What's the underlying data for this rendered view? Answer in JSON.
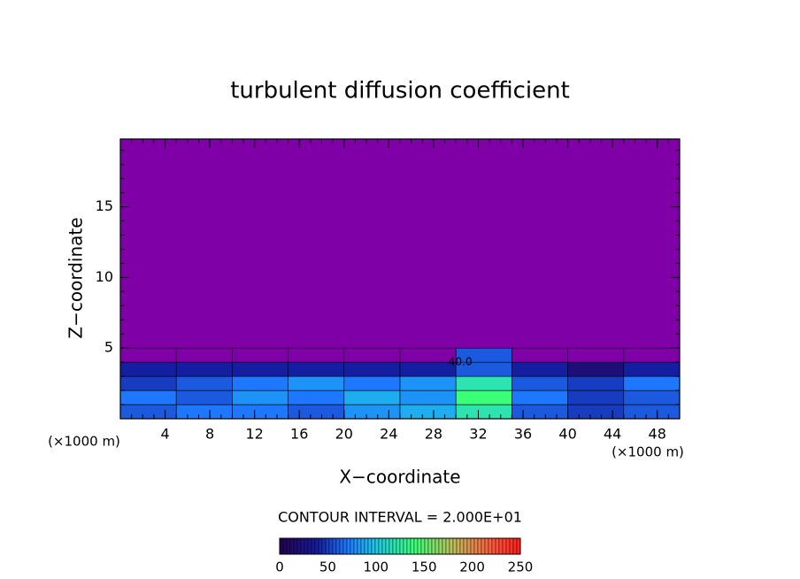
{
  "chart_data": {
    "type": "contour",
    "title": "turbulent diffusion coefficient",
    "x_label": "X−coordinate",
    "y_label": "Z−coordinate",
    "x_unit_label": "(×1000 m)",
    "y_unit_label": "(×1000 m)",
    "xlim": [
      0,
      50
    ],
    "ylim": [
      0,
      19.8
    ],
    "xticks": [
      4,
      8,
      12,
      16,
      20,
      24,
      28,
      32,
      36,
      40,
      44,
      48
    ],
    "yticks": [
      5,
      10,
      15
    ],
    "background_color": "#8000a8",
    "x": [
      2.5,
      7.5,
      12.5,
      17.5,
      22.5,
      27.5,
      32.5,
      37.5,
      42.5,
      47.5
    ],
    "y": [
      0.5,
      1.5,
      2.5,
      3.5,
      4.5
    ],
    "z": [
      [
        60,
        70,
        70,
        60,
        80,
        90,
        120,
        60,
        50,
        60
      ],
      [
        70,
        60,
        80,
        70,
        90,
        80,
        140,
        70,
        50,
        60
      ],
      [
        50,
        60,
        70,
        80,
        70,
        80,
        120,
        60,
        50,
        70
      ],
      [
        40,
        40,
        40,
        40,
        40,
        40,
        60,
        40,
        20,
        40
      ],
      [
        0,
        0,
        0,
        0,
        0,
        0,
        60,
        0,
        0,
        0
      ]
    ],
    "annotations": [
      {
        "text": "40.0",
        "x": 30.4,
        "y": 4
      }
    ],
    "contour_interval_label": "CONTOUR INTERVAL = 2.000E+01",
    "colorbar_lim": [
      0,
      250
    ],
    "colorbar_ticks": [
      0,
      50,
      100,
      150,
      200,
      250
    ]
  }
}
